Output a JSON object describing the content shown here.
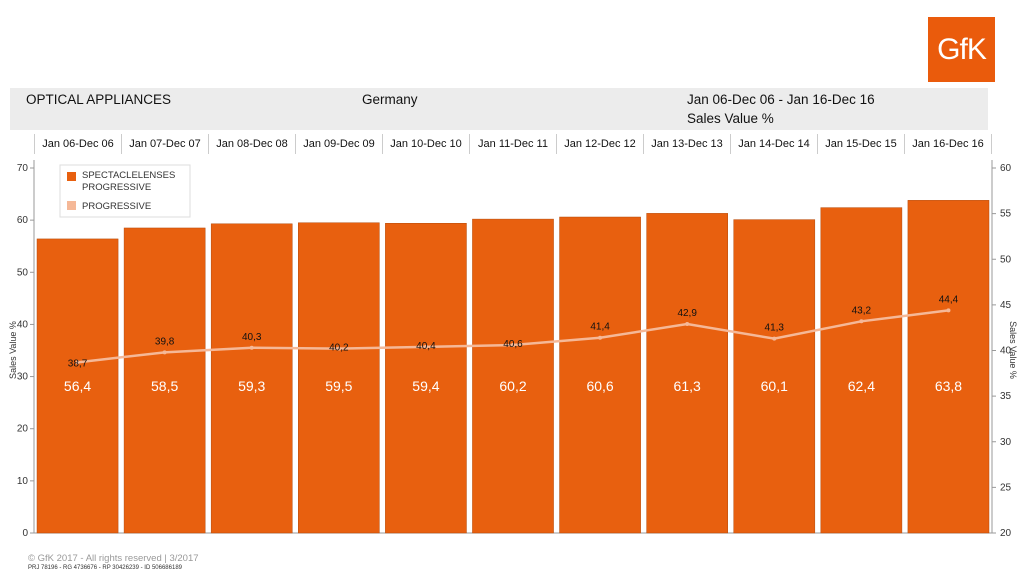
{
  "logo": "GfK",
  "header": {
    "category": "OPTICAL APPLIANCES",
    "country": "Germany",
    "period": "Jan 06-Dec 06 - Jan 16-Dec 16",
    "measure": "Sales Value %"
  },
  "footer": {
    "copyright": "© GfK 2017 - All rights reserved | 3/2017",
    "ids": "PRJ 78196 - RG 4736676 - RP 30426239 - ID 506686189"
  },
  "chart_data": {
    "type": "bar+line",
    "categories": [
      "Jan 06-Dec 06",
      "Jan 07-Dec 07",
      "Jan 08-Dec 08",
      "Jan 09-Dec 09",
      "Jan 10-Dec 10",
      "Jan 11-Dec 11",
      "Jan 12-Dec 12",
      "Jan 13-Dec 13",
      "Jan 14-Dec 14",
      "Jan 15-Dec 15",
      "Jan 16-Dec 16"
    ],
    "series": [
      {
        "name": "SPECTACLELENSES PROGRESSIVE",
        "type": "bar",
        "axis": "left",
        "color": "#e8600f",
        "values": [
          56.4,
          58.5,
          59.3,
          59.5,
          59.4,
          60.2,
          60.6,
          61.3,
          60.1,
          62.4,
          63.8
        ],
        "labels": [
          "56,4",
          "58,5",
          "59,3",
          "59,5",
          "59,4",
          "60,2",
          "60,6",
          "61,3",
          "60,1",
          "62,4",
          "63,8"
        ]
      },
      {
        "name": "PROGRESSIVE",
        "type": "line",
        "axis": "right",
        "color": "#f5b897",
        "values": [
          38.7,
          39.8,
          40.3,
          40.2,
          40.4,
          40.6,
          41.4,
          42.9,
          41.3,
          43.2,
          44.4
        ],
        "labels": [
          "38,7",
          "39,8",
          "40,3",
          "40,2",
          "40,4",
          "40,6",
          "41,4",
          "42,9",
          "41,3",
          "43,2",
          "44,4"
        ]
      }
    ],
    "ylabel_left": "Sales Value %",
    "ylabel_right": "Sales Value %",
    "ylim_left": [
      0,
      70
    ],
    "yticks_left": [
      0,
      10,
      20,
      30,
      40,
      50,
      60,
      70
    ],
    "ylim_right": [
      20,
      60
    ],
    "yticks_right": [
      20,
      25,
      30,
      35,
      40,
      45,
      50,
      55,
      60
    ],
    "legend": "top-left"
  }
}
